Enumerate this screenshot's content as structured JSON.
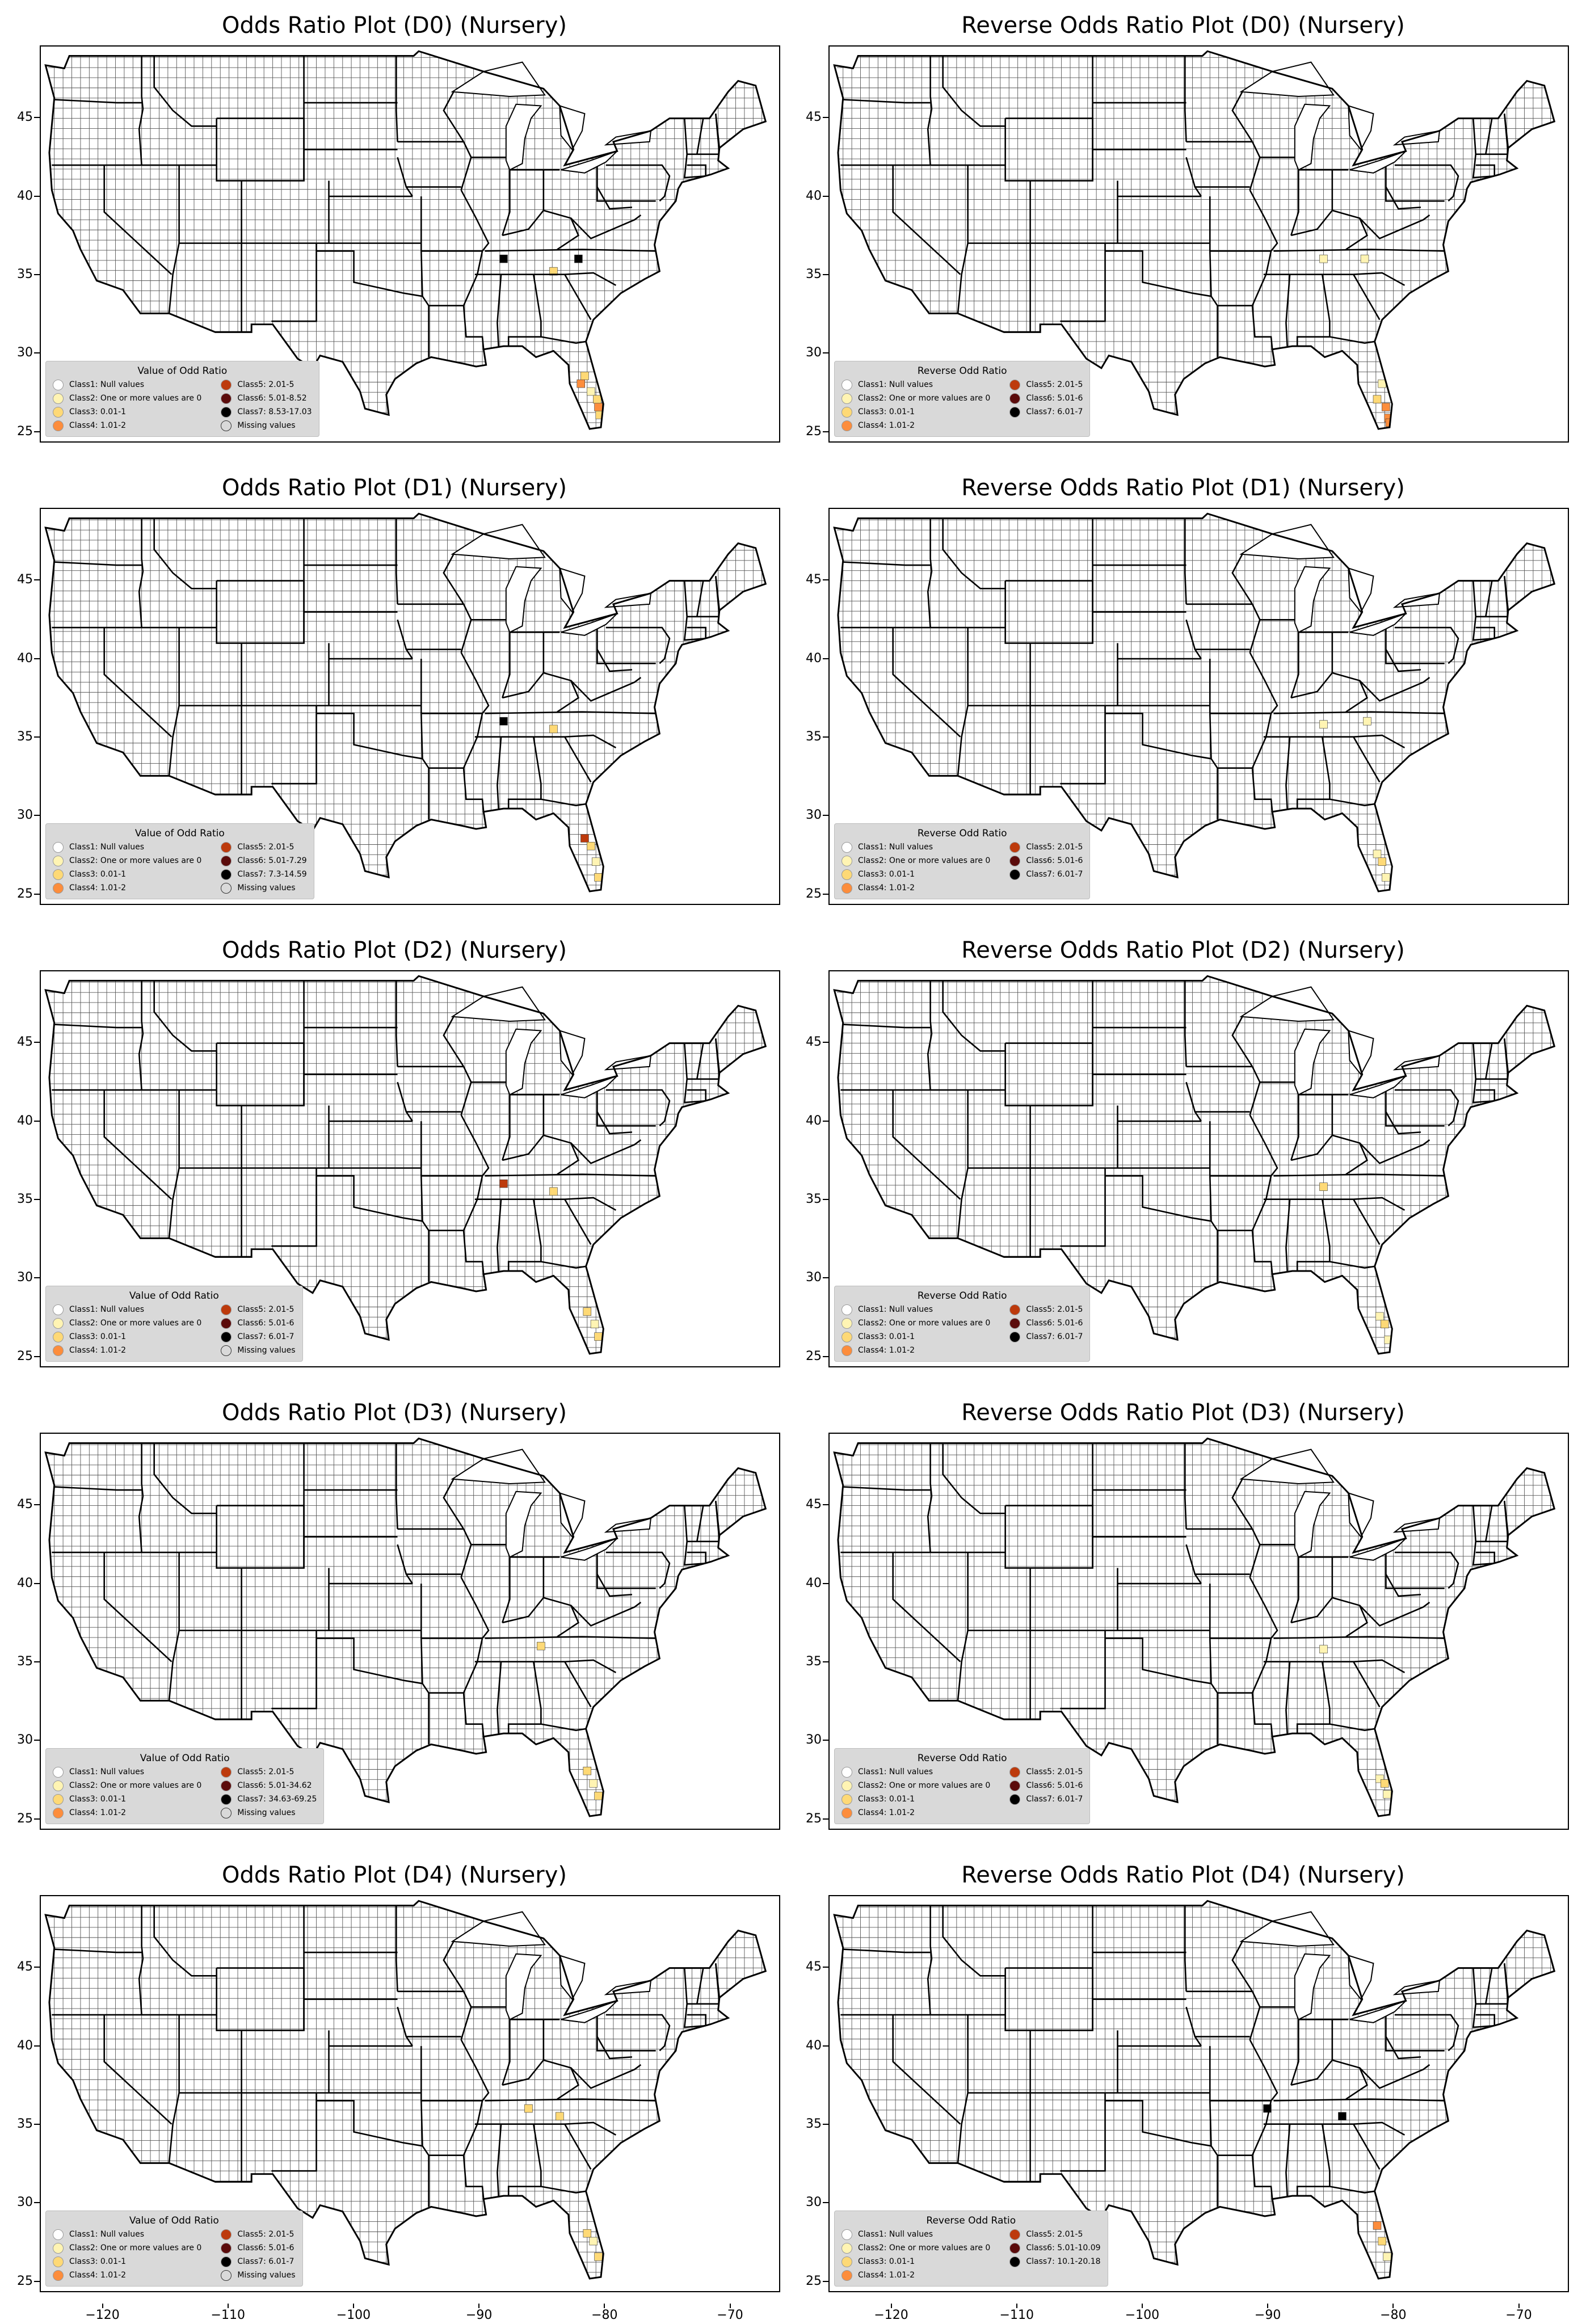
{
  "map_axes": {
    "y_ticks": [
      45,
      40,
      35,
      30,
      25
    ],
    "x_ticks": [
      "−120",
      "−110",
      "−100",
      "−90",
      "−80",
      "−70"
    ],
    "x_tick_values": [
      -120,
      -110,
      -100,
      -90,
      -80,
      -70
    ],
    "lon_range": [
      -125,
      -66
    ],
    "lat_range": [
      24.3,
      49.6
    ]
  },
  "colors": {
    "class1": "#ffffff",
    "class2": "#fff4b3",
    "class3": "#fed976",
    "class4": "#fd8d3c",
    "class5": "#bd3a0c",
    "class6": "#5b0b0b",
    "class7": "#000000",
    "missing": "#d9d9d9"
  },
  "panels": [
    {
      "title": "Odds Ratio Plot (D0) (Nursery)",
      "legend_title": "Value of Odd Ratio",
      "legend": [
        "Class1: Null values",
        "Class2: One or more values are 0",
        "Class3: 0.01-1",
        "Class4: 1.01-2",
        "Class5: 2.01-5",
        "Class6: 5.01-8.52",
        "Class7: 8.53-17.03",
        "Missing values"
      ]
    },
    {
      "title": "Reverse Odds Ratio Plot (D0) (Nursery)",
      "legend_title": "Reverse Odd Ratio",
      "legend": [
        "Class1: Null values",
        "Class2: One or more values are 0",
        "Class3: 0.01-1",
        "Class4: 1.01-2",
        "Class5: 2.01-5",
        "Class6: 5.01-6",
        "Class7: 6.01-7"
      ]
    },
    {
      "title": "Odds Ratio Plot (D1) (Nursery)",
      "legend_title": "Value of Odd Ratio",
      "legend": [
        "Class1: Null values",
        "Class2: One or more values are 0",
        "Class3: 0.01-1",
        "Class4: 1.01-2",
        "Class5: 2.01-5",
        "Class6: 5.01-7.29",
        "Class7: 7.3-14.59",
        "Missing values"
      ]
    },
    {
      "title": "Reverse Odds Ratio Plot (D1) (Nursery)",
      "legend_title": "Reverse Odd Ratio",
      "legend": [
        "Class1: Null values",
        "Class2: One or more values are 0",
        "Class3: 0.01-1",
        "Class4: 1.01-2",
        "Class5: 2.01-5",
        "Class6: 5.01-6",
        "Class7: 6.01-7"
      ]
    },
    {
      "title": "Odds Ratio Plot (D2) (Nursery)",
      "legend_title": "Value of Odd Ratio",
      "legend": [
        "Class1: Null values",
        "Class2: One or more values are 0",
        "Class3: 0.01-1",
        "Class4: 1.01-2",
        "Class5: 2.01-5",
        "Class6: 5.01-6",
        "Class7: 6.01-7",
        "Missing values"
      ]
    },
    {
      "title": "Reverse Odds Ratio Plot (D2) (Nursery)",
      "legend_title": "Reverse Odd Ratio",
      "legend": [
        "Class1: Null values",
        "Class2: One or more values are 0",
        "Class3: 0.01-1",
        "Class4: 1.01-2",
        "Class5: 2.01-5",
        "Class6: 5.01-6",
        "Class7: 6.01-7"
      ]
    },
    {
      "title": "Odds Ratio Plot (D3) (Nursery)",
      "legend_title": "Value of Odd Ratio",
      "legend": [
        "Class1: Null values",
        "Class2: One or more values are 0",
        "Class3: 0.01-1",
        "Class4: 1.01-2",
        "Class5: 2.01-5",
        "Class6: 5.01-34.62",
        "Class7: 34.63-69.25",
        "Missing values"
      ]
    },
    {
      "title": "Reverse Odds Ratio Plot (D3) (Nursery)",
      "legend_title": "Reverse Odd Ratio",
      "legend": [
        "Class1: Null values",
        "Class2: One or more values are 0",
        "Class3: 0.01-1",
        "Class4: 1.01-2",
        "Class5: 2.01-5",
        "Class6: 5.01-6",
        "Class7: 6.01-7"
      ]
    },
    {
      "title": "Odds Ratio Plot (D4) (Nursery)",
      "legend_title": "Value of Odd Ratio",
      "legend": [
        "Class1: Null values",
        "Class2: One or more values are 0",
        "Class3: 0.01-1",
        "Class4: 1.01-2",
        "Class5: 2.01-5",
        "Class6: 5.01-6",
        "Class7: 6.01-7",
        "Missing values"
      ]
    },
    {
      "title": "Reverse Odds Ratio Plot (D4) (Nursery)",
      "legend_title": "Reverse Odd Ratio",
      "legend": [
        "Class1: Null values",
        "Class2: One or more values are 0",
        "Class3: 0.01-1",
        "Class4: 1.01-2",
        "Class5: 2.01-5",
        "Class6: 5.01-10.09",
        "Class7: 10.1-20.18"
      ]
    }
  ]
}
